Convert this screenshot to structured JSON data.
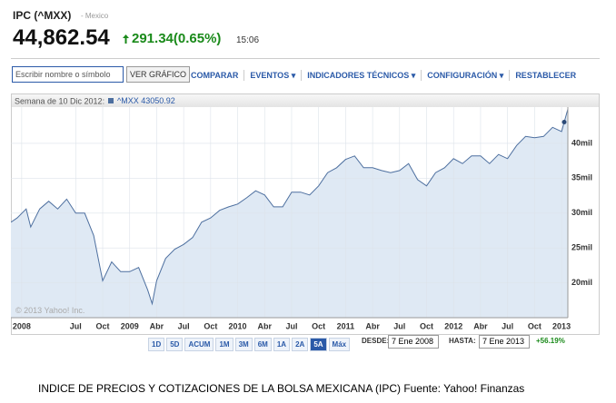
{
  "header": {
    "title": "IPC (^MXX)",
    "exchange": "- Mexico",
    "price": "44,862.54",
    "change": "291.34(0.65%)",
    "time": "15:06"
  },
  "toolbar": {
    "search_placeholder": "Escribir nombre o símbolo",
    "button": "VER GRÁFICO",
    "links": [
      "COMPARAR",
      "EVENTOS",
      "INDICADORES TÉCNICOS",
      "CONFIGURACIÓN",
      "RESTABLECER"
    ]
  },
  "chart_data": {
    "type": "area",
    "legend_label": "Semana de 10 Dic 2012:",
    "series": [
      {
        "name": "^MXX",
        "color": "#4d6f9f",
        "x": [
          -1.2,
          -0.5,
          0.5,
          1,
          2,
          3,
          4,
          5,
          6,
          7,
          8,
          9,
          10,
          11,
          12,
          13,
          14,
          14.5,
          15,
          16,
          17,
          18,
          19,
          20,
          21,
          22,
          23,
          24,
          25,
          26,
          27,
          28,
          29,
          30,
          31,
          32,
          33,
          34,
          35,
          36,
          37,
          38,
          39,
          40,
          41,
          42,
          43,
          44,
          45,
          46,
          47,
          48,
          49,
          50,
          51,
          52,
          53,
          54,
          55,
          56,
          57,
          58,
          59,
          60,
          60.3,
          60.7
        ],
        "values": [
          28700,
          29300,
          30600,
          28000,
          30600,
          31700,
          30600,
          32000,
          30000,
          30000,
          26800,
          20300,
          23000,
          21600,
          21600,
          22200,
          19000,
          17000,
          20300,
          23500,
          24800,
          25500,
          26500,
          28700,
          29300,
          30400,
          30900,
          31300,
          32200,
          33200,
          32600,
          30900,
          30900,
          33000,
          33000,
          32600,
          33900,
          35800,
          36500,
          37700,
          38200,
          36500,
          36500,
          36100,
          35800,
          36100,
          37100,
          34800,
          33900,
          35800,
          36500,
          37800,
          37100,
          38200,
          38200,
          37100,
          38400,
          37800,
          39700,
          41000,
          40800,
          41000,
          42300,
          41700,
          43050.92,
          44900
        ]
      }
    ],
    "marker": {
      "x": 60.3,
      "value": 43050.92
    },
    "xlim": [
      -1.2,
      60.7
    ],
    "xticks": [
      {
        "value": 0,
        "label": "2008"
      },
      {
        "value": 6,
        "label": "Jul"
      },
      {
        "value": 9,
        "label": "Oct"
      },
      {
        "value": 12,
        "label": "2009"
      },
      {
        "value": 15,
        "label": "Abr"
      },
      {
        "value": 18,
        "label": "Jul"
      },
      {
        "value": 21,
        "label": "Oct"
      },
      {
        "value": 24,
        "label": "2010"
      },
      {
        "value": 27,
        "label": "Abr"
      },
      {
        "value": 30,
        "label": "Jul"
      },
      {
        "value": 33,
        "label": "Oct"
      },
      {
        "value": 36,
        "label": "2011"
      },
      {
        "value": 39,
        "label": "Abr"
      },
      {
        "value": 42,
        "label": "Jul"
      },
      {
        "value": 45,
        "label": "Oct"
      },
      {
        "value": 48,
        "label": "2012"
      },
      {
        "value": 51,
        "label": "Abr"
      },
      {
        "value": 54,
        "label": "Jul"
      },
      {
        "value": 57,
        "label": "Oct"
      },
      {
        "value": 60,
        "label": "2013"
      }
    ],
    "ylim": [
      15000,
      45200
    ],
    "yticks": [
      {
        "value": 20000,
        "label": "20mil"
      },
      {
        "value": 25000,
        "label": "25mil"
      },
      {
        "value": 30000,
        "label": "30mil"
      },
      {
        "value": 35000,
        "label": "35mil"
      },
      {
        "value": 40000,
        "label": "40mil"
      }
    ],
    "grid": true,
    "copyright": "© 2013 Yahoo! Inc."
  },
  "ranges": {
    "buttons": [
      "1D",
      "5D",
      "ACUM",
      "1M",
      "3M",
      "6M",
      "1A",
      "2A",
      "5A",
      "Máx"
    ],
    "selected": "5A",
    "from_label": "DESDE:",
    "from": "7 Ene 2008",
    "to_label": "HASTA:",
    "to": "7 Ene 2013",
    "change": "+56.19%"
  },
  "caption": "INDICE DE PRECIOS Y COTIZACIONES DE LA BOLSA MEXICANA (IPC) Fuente: Yahoo! Finanzas"
}
